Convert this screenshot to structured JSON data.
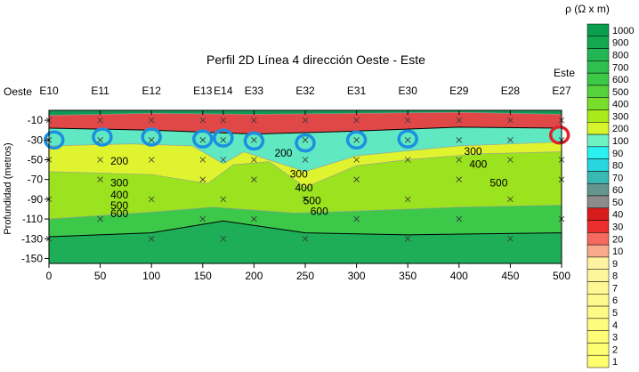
{
  "chart_data": {
    "type": "heatmap",
    "title": "Perfil 2D Línea 4 dirección Oeste - Este",
    "xlabel": "",
    "ylabel": "Profundidad (metros)",
    "xlim": [
      0,
      500
    ],
    "ylim": [
      -155,
      0
    ],
    "x_ticks": [
      0,
      50,
      100,
      150,
      200,
      250,
      300,
      350,
      400,
      450,
      500
    ],
    "y_ticks": [
      -10,
      -30,
      -50,
      -70,
      -90,
      -110,
      -130,
      -150
    ],
    "direction_labels": {
      "west": "Oeste",
      "east": "Este"
    },
    "electrodes": [
      {
        "label": "E10",
        "x": 0
      },
      {
        "label": "E11",
        "x": 50
      },
      {
        "label": "E12",
        "x": 100
      },
      {
        "label": "E13",
        "x": 150
      },
      {
        "label": "E14",
        "x": 170
      },
      {
        "label": "E33",
        "x": 200
      },
      {
        "label": "E32",
        "x": 250
      },
      {
        "label": "E31",
        "x": 300
      },
      {
        "label": "E30",
        "x": 350
      },
      {
        "label": "E29",
        "x": 400
      },
      {
        "label": "E28",
        "x": 450
      },
      {
        "label": "E27",
        "x": 500
      }
    ],
    "contour_labels": [
      {
        "text": "200",
        "x": 60,
        "y": -55
      },
      {
        "text": "300",
        "x": 60,
        "y": -77
      },
      {
        "text": "400",
        "x": 60,
        "y": -89
      },
      {
        "text": "500",
        "x": 60,
        "y": -100
      },
      {
        "text": "600",
        "x": 60,
        "y": -108
      },
      {
        "text": "200",
        "x": 220,
        "y": -47
      },
      {
        "text": "300",
        "x": 235,
        "y": -68
      },
      {
        "text": "400",
        "x": 240,
        "y": -82
      },
      {
        "text": "500",
        "x": 248,
        "y": -95
      },
      {
        "text": "600",
        "x": 255,
        "y": -106
      },
      {
        "text": "300",
        "x": 405,
        "y": -45
      },
      {
        "text": "400",
        "x": 410,
        "y": -58
      },
      {
        "text": "500",
        "x": 430,
        "y": -77
      }
    ],
    "colorbar": {
      "title": "ρ (Ω x m)",
      "levels": [
        {
          "value": "1000",
          "color": "#0a9e4e"
        },
        {
          "value": "900",
          "color": "#15a851"
        },
        {
          "value": "800",
          "color": "#22b553"
        },
        {
          "value": "700",
          "color": "#2fbf4f"
        },
        {
          "value": "600",
          "color": "#3dc948"
        },
        {
          "value": "500",
          "color": "#56d23c"
        },
        {
          "value": "400",
          "color": "#79dd2b"
        },
        {
          "value": "300",
          "color": "#a8ea1c"
        },
        {
          "value": "200",
          "color": "#d7f52a"
        },
        {
          "value": "100",
          "color": "#6ff2c2"
        },
        {
          "value": "90",
          "color": "#2bf0f0"
        },
        {
          "value": "80",
          "color": "#28d6e0"
        },
        {
          "value": "70",
          "color": "#39b9b3"
        },
        {
          "value": "60",
          "color": "#64958f"
        },
        {
          "value": "50",
          "color": "#8c8c8c"
        },
        {
          "value": "40",
          "color": "#d81c1c"
        },
        {
          "value": "30",
          "color": "#ec2e2e"
        },
        {
          "value": "20",
          "color": "#f56b5d"
        },
        {
          "value": "10",
          "color": "#faa98f"
        },
        {
          "value": "9",
          "color": "#fff3a1"
        },
        {
          "value": "8",
          "color": "#fff59b"
        },
        {
          "value": "7",
          "color": "#fff794"
        },
        {
          "value": "6",
          "color": "#fff98d"
        },
        {
          "value": "5",
          "color": "#fffa86"
        },
        {
          "value": "4",
          "color": "#fffb7f"
        },
        {
          "value": "3",
          "color": "#fffc78"
        },
        {
          "value": "2",
          "color": "#fffd72"
        },
        {
          "value": "1",
          "color": "#fffe6c"
        }
      ]
    },
    "layers": [
      {
        "name": "",
        "color": "#1fae58",
        "top": [
          [
            0,
            -128
          ],
          [
            100,
            -124
          ],
          [
            170,
            -112
          ],
          [
            250,
            -124
          ],
          [
            350,
            -126
          ],
          [
            500,
            -124
          ]
        ]
      },
      {
        "name": "",
        "color": "#3cc94a",
        "top": [
          [
            0,
            -110
          ],
          [
            100,
            -103
          ],
          [
            160,
            -98
          ],
          [
            240,
            -104
          ],
          [
            300,
            -102
          ],
          [
            400,
            -98
          ],
          [
            500,
            -96
          ]
        ]
      },
      {
        "name": "",
        "color": "#9be21f",
        "top": [
          [
            0,
            -62
          ],
          [
            100,
            -65
          ],
          [
            155,
            -74
          ],
          [
            180,
            -55
          ],
          [
            215,
            -52
          ],
          [
            250,
            -78
          ],
          [
            300,
            -56
          ],
          [
            350,
            -50
          ],
          [
            420,
            -44
          ],
          [
            500,
            -42
          ]
        ]
      },
      {
        "name": "",
        "color": "#dff42f",
        "top": [
          [
            0,
            -36
          ],
          [
            80,
            -34
          ],
          [
            140,
            -36
          ],
          [
            170,
            -54
          ],
          [
            190,
            -42
          ],
          [
            250,
            -62
          ],
          [
            300,
            -46
          ],
          [
            400,
            -36
          ],
          [
            500,
            -32
          ]
        ]
      },
      {
        "name": "",
        "color": "#5fe8c1",
        "top": [
          [
            0,
            -18
          ],
          [
            100,
            -20
          ],
          [
            200,
            -24
          ],
          [
            300,
            -21
          ],
          [
            400,
            -17
          ],
          [
            500,
            -18
          ]
        ]
      },
      {
        "name": "",
        "color": "#e04848",
        "top": [
          [
            0,
            -5
          ],
          [
            100,
            -3
          ],
          [
            200,
            -4
          ],
          [
            300,
            -3
          ],
          [
            400,
            -2
          ],
          [
            500,
            -4
          ]
        ]
      }
    ],
    "highlights": [
      {
        "x": 5,
        "y": -30,
        "color": "#1d8fe0"
      },
      {
        "x": 52,
        "y": -27,
        "color": "#1d8fe0"
      },
      {
        "x": 100,
        "y": -27,
        "color": "#1d8fe0"
      },
      {
        "x": 150,
        "y": -29,
        "color": "#1d8fe0"
      },
      {
        "x": 170,
        "y": -28,
        "color": "#1d8fe0"
      },
      {
        "x": 200,
        "y": -31,
        "color": "#1d8fe0"
      },
      {
        "x": 250,
        "y": -33,
        "color": "#1d8fe0"
      },
      {
        "x": 300,
        "y": -30,
        "color": "#1d8fe0"
      },
      {
        "x": 350,
        "y": -29,
        "color": "#1d8fe0"
      },
      {
        "x": 498,
        "y": -25,
        "color": "#e0222c"
      }
    ],
    "grid": false,
    "legend": "right"
  }
}
